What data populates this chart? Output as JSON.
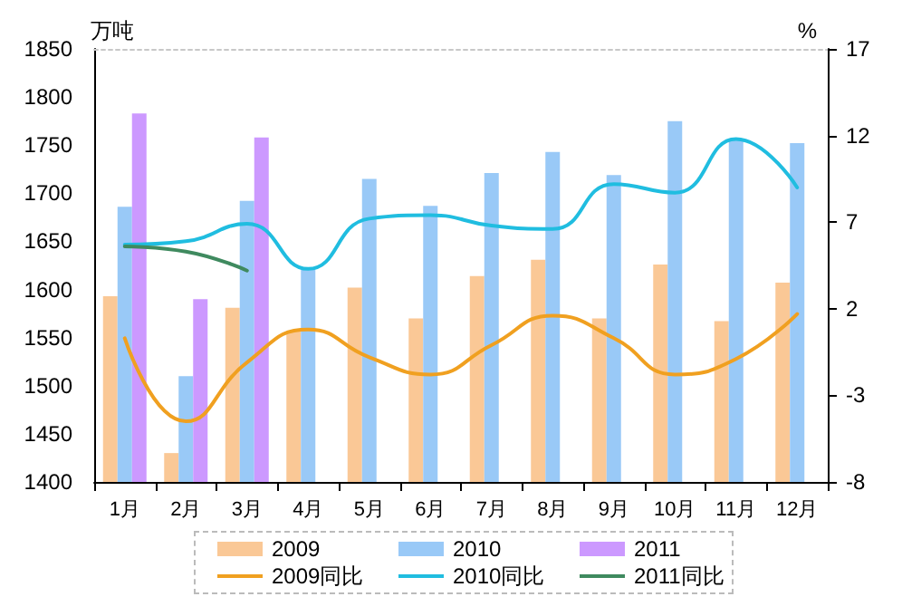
{
  "chart_data": {
    "type": "bar",
    "ylabel": "万吨",
    "y2label": "%",
    "categories": [
      "1月",
      "2月",
      "3月",
      "4月",
      "5月",
      "6月",
      "7月",
      "8月",
      "9月",
      "10月",
      "11月",
      "12月"
    ],
    "series": [
      {
        "name": "2009",
        "color": "#fac896",
        "values": [
          1593,
          1430,
          1581,
          1557,
          1602,
          1570,
          1614,
          1631,
          1570,
          1626,
          1567,
          1607
        ]
      },
      {
        "name": "2010",
        "color": "#99c9f7",
        "values": [
          1686,
          1510,
          1692,
          1623,
          1715,
          1687,
          1721,
          1743,
          1719,
          1775,
          1756,
          1752
        ]
      },
      {
        "name": "2011",
        "color": "#cc99ff",
        "values": [
          1783,
          1590,
          1758,
          null,
          null,
          null,
          null,
          null,
          null,
          null,
          null,
          null
        ]
      },
      {
        "name": "2009同比",
        "type": "line",
        "axis": "y2",
        "color": "#f0a020",
        "values": [
          0.3,
          -4.5,
          -1.1,
          0.8,
          -0.8,
          -1.8,
          -0.1,
          1.6,
          0.3,
          -1.8,
          -0.9,
          1.7
        ]
      },
      {
        "name": "2010同比",
        "type": "line",
        "axis": "y2",
        "color": "#20bde0",
        "values": [
          5.7,
          5.9,
          6.9,
          4.3,
          7.2,
          7.4,
          6.8,
          6.6,
          9.2,
          8.7,
          11.8,
          9.0
        ]
      },
      {
        "name": "2011同比",
        "type": "line",
        "axis": "y2",
        "color": "#3f8a5f",
        "values": [
          5.6,
          5.3,
          4.2,
          null,
          null,
          null,
          null,
          null,
          null,
          null,
          null,
          null
        ]
      }
    ],
    "ylim": [
      1400,
      1850
    ],
    "yticks": [
      1400,
      1450,
      1500,
      1550,
      1600,
      1650,
      1700,
      1750,
      1800,
      1850
    ],
    "y2lim": [
      -8,
      17
    ],
    "y2ticks": [
      -8,
      -3,
      2,
      7,
      12,
      17
    ],
    "legend": "bottom",
    "marker": "none",
    "line_style": "solid"
  }
}
